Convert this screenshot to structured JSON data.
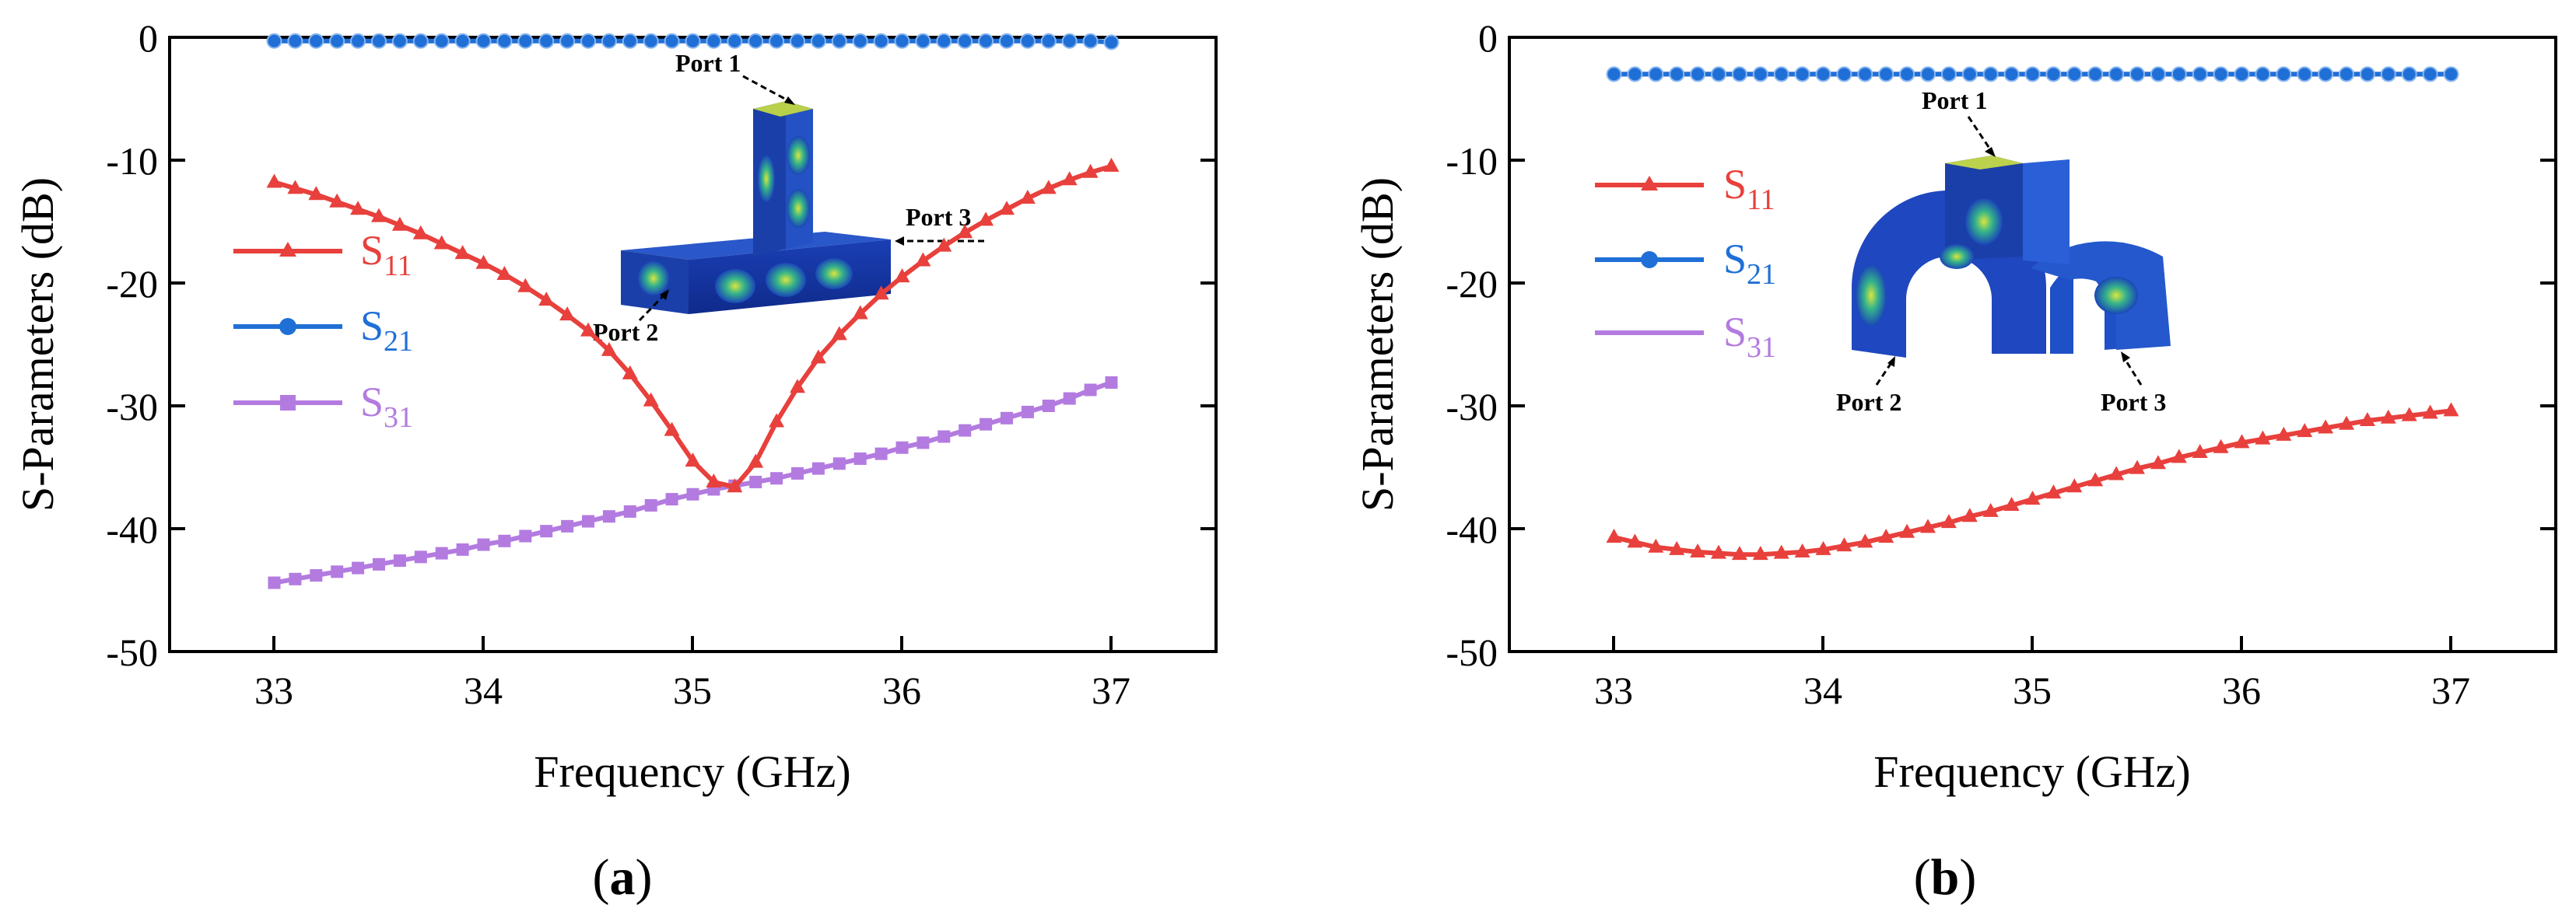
{
  "figure": {
    "panel_labels": [
      {
        "open": "(",
        "letter": "a",
        "close": ")"
      },
      {
        "open": "(",
        "letter": "b",
        "close": ")"
      }
    ]
  },
  "colors": {
    "s11": "#e8403c",
    "s21": "#1f6fd6",
    "s31": "#b37be0",
    "axis": "#000000"
  },
  "chart_data": [
    {
      "type": "line",
      "panel": "a",
      "xlabel": "Frequency (GHz)",
      "ylabel": "S-Parameters (dB)",
      "xlim": [
        32.5,
        37.5
      ],
      "ylim": [
        -50,
        0
      ],
      "xticks": [
        33,
        34,
        35,
        36,
        37
      ],
      "yticks": [
        0,
        -10,
        -20,
        -30,
        -40,
        -50
      ],
      "legend_position": "left-middle",
      "series": [
        {
          "name": "S11",
          "label_main": "S",
          "label_sub": "11",
          "marker": "triangle",
          "color": "#e8403c",
          "x": [
            33.0,
            33.1,
            33.2,
            33.3,
            33.4,
            33.5,
            33.6,
            33.7,
            33.8,
            33.9,
            34.0,
            34.1,
            34.2,
            34.3,
            34.4,
            34.5,
            34.6,
            34.7,
            34.8,
            34.9,
            35.0,
            35.1,
            35.2,
            35.3,
            35.4,
            35.5,
            35.6,
            35.7,
            35.8,
            35.9,
            36.0,
            36.1,
            36.2,
            36.3,
            36.4,
            36.5,
            36.6,
            36.7,
            36.8,
            36.9,
            37.0
          ],
          "y": [
            -11.8,
            -12.3,
            -12.8,
            -13.4,
            -14.0,
            -14.6,
            -15.3,
            -16.0,
            -16.8,
            -17.6,
            -18.4,
            -19.3,
            -20.3,
            -21.4,
            -22.6,
            -23.9,
            -25.5,
            -27.4,
            -29.6,
            -32.0,
            -34.5,
            -36.2,
            -36.6,
            -34.6,
            -31.3,
            -28.5,
            -26.1,
            -24.2,
            -22.5,
            -20.9,
            -19.5,
            -18.2,
            -17.0,
            -15.9,
            -14.9,
            -14.0,
            -13.1,
            -12.3,
            -11.6,
            -11.0,
            -10.5
          ]
        },
        {
          "name": "S21",
          "label_main": "S",
          "label_sub": "21",
          "marker": "circle",
          "color": "#1f6fd6",
          "x": [
            33.0,
            33.1,
            33.2,
            33.3,
            33.4,
            33.5,
            33.6,
            33.7,
            33.8,
            33.9,
            34.0,
            34.1,
            34.2,
            34.3,
            34.4,
            34.5,
            34.6,
            34.7,
            34.8,
            34.9,
            35.0,
            35.1,
            35.2,
            35.3,
            35.4,
            35.5,
            35.6,
            35.7,
            35.8,
            35.9,
            36.0,
            36.1,
            36.2,
            36.3,
            36.4,
            36.5,
            36.6,
            36.7,
            36.8,
            36.9,
            37.0
          ],
          "y": [
            -0.3,
            -0.3,
            -0.3,
            -0.3,
            -0.3,
            -0.3,
            -0.3,
            -0.3,
            -0.3,
            -0.3,
            -0.3,
            -0.3,
            -0.3,
            -0.3,
            -0.3,
            -0.3,
            -0.3,
            -0.3,
            -0.3,
            -0.3,
            -0.3,
            -0.3,
            -0.3,
            -0.3,
            -0.3,
            -0.3,
            -0.3,
            -0.3,
            -0.3,
            -0.3,
            -0.3,
            -0.3,
            -0.3,
            -0.3,
            -0.3,
            -0.3,
            -0.3,
            -0.3,
            -0.3,
            -0.3,
            -0.4
          ]
        },
        {
          "name": "S31",
          "label_main": "S",
          "label_sub": "31",
          "marker": "square",
          "color": "#b37be0",
          "x": [
            33.0,
            33.1,
            33.2,
            33.3,
            33.4,
            33.5,
            33.6,
            33.7,
            33.8,
            33.9,
            34.0,
            34.1,
            34.2,
            34.3,
            34.4,
            34.5,
            34.6,
            34.7,
            34.8,
            34.9,
            35.0,
            35.1,
            35.2,
            35.3,
            35.4,
            35.5,
            35.6,
            35.7,
            35.8,
            35.9,
            36.0,
            36.1,
            36.2,
            36.3,
            36.4,
            36.5,
            36.6,
            36.7,
            36.8,
            36.9,
            37.0
          ],
          "y": [
            -44.4,
            -44.1,
            -43.8,
            -43.5,
            -43.2,
            -42.9,
            -42.6,
            -42.3,
            -42.0,
            -41.7,
            -41.3,
            -41.0,
            -40.6,
            -40.2,
            -39.8,
            -39.4,
            -39.0,
            -38.6,
            -38.1,
            -37.6,
            -37.2,
            -36.8,
            -36.5,
            -36.2,
            -35.9,
            -35.5,
            -35.1,
            -34.7,
            -34.3,
            -33.9,
            -33.4,
            -33.0,
            -32.5,
            -32.0,
            -31.5,
            -31.0,
            -30.5,
            -30.0,
            -29.4,
            -28.7,
            -28.1
          ]
        }
      ],
      "inset": {
        "description_labels": [
          "Port 1",
          "Port 2",
          "Port 3"
        ]
      }
    },
    {
      "type": "line",
      "panel": "b",
      "xlabel": "Frequency (GHz)",
      "ylabel": "S-Parameters (dB)",
      "xlim": [
        32.5,
        37.5
      ],
      "ylim": [
        -50,
        0
      ],
      "xticks": [
        33,
        34,
        35,
        36,
        37
      ],
      "yticks": [
        0,
        -10,
        -20,
        -30,
        -40,
        -50
      ],
      "legend_position": "left-upper",
      "series": [
        {
          "name": "S11",
          "label_main": "S",
          "label_sub": "11",
          "marker": "triangle",
          "color": "#e8403c",
          "x": [
            33.0,
            33.1,
            33.2,
            33.3,
            33.4,
            33.5,
            33.6,
            33.7,
            33.8,
            33.9,
            34.0,
            34.1,
            34.2,
            34.3,
            34.4,
            34.5,
            34.6,
            34.7,
            34.8,
            34.9,
            35.0,
            35.1,
            35.2,
            35.3,
            35.4,
            35.5,
            35.6,
            35.7,
            35.8,
            35.9,
            36.0,
            36.1,
            36.2,
            36.3,
            36.4,
            36.5,
            36.6,
            36.7,
            36.8,
            36.9,
            37.0
          ],
          "y": [
            -40.7,
            -41.1,
            -41.5,
            -41.7,
            -41.9,
            -42.0,
            -42.1,
            -42.1,
            -42.0,
            -41.9,
            -41.7,
            -41.4,
            -41.1,
            -40.7,
            -40.3,
            -39.9,
            -39.5,
            -39.0,
            -38.6,
            -38.1,
            -37.6,
            -37.1,
            -36.6,
            -36.1,
            -35.6,
            -35.1,
            -34.7,
            -34.2,
            -33.8,
            -33.4,
            -33.0,
            -32.7,
            -32.4,
            -32.1,
            -31.8,
            -31.5,
            -31.2,
            -31.0,
            -30.8,
            -30.6,
            -30.4
          ]
        },
        {
          "name": "S21",
          "label_main": "S",
          "label_sub": "21",
          "marker": "circle",
          "color": "#1f6fd6",
          "x": [
            33.0,
            33.1,
            33.2,
            33.3,
            33.4,
            33.5,
            33.6,
            33.7,
            33.8,
            33.9,
            34.0,
            34.1,
            34.2,
            34.3,
            34.4,
            34.5,
            34.6,
            34.7,
            34.8,
            34.9,
            35.0,
            35.1,
            35.2,
            35.3,
            35.4,
            35.5,
            35.6,
            35.7,
            35.8,
            35.9,
            36.0,
            36.1,
            36.2,
            36.3,
            36.4,
            36.5,
            36.6,
            36.7,
            36.8,
            36.9,
            37.0
          ],
          "y": [
            -3.0,
            -3.0,
            -3.0,
            -3.0,
            -3.0,
            -3.0,
            -3.0,
            -3.0,
            -3.0,
            -3.0,
            -3.0,
            -3.0,
            -3.0,
            -3.0,
            -3.0,
            -3.0,
            -3.0,
            -3.0,
            -3.0,
            -3.0,
            -3.0,
            -3.0,
            -3.0,
            -3.0,
            -3.0,
            -3.0,
            -3.0,
            -3.0,
            -3.0,
            -3.0,
            -3.0,
            -3.0,
            -3.0,
            -3.0,
            -3.0,
            -3.0,
            -3.0,
            -3.0,
            -3.0,
            -3.0,
            -3.0
          ]
        },
        {
          "name": "S31",
          "label_main": "S",
          "label_sub": "31",
          "marker": "none",
          "color": "#b37be0",
          "x": [
            33.0,
            33.1,
            33.2,
            33.3,
            33.4,
            33.5,
            33.6,
            33.7,
            33.8,
            33.9,
            34.0,
            34.1,
            34.2,
            34.3,
            34.4,
            34.5,
            34.6,
            34.7,
            34.8,
            34.9,
            35.0,
            35.1,
            35.2,
            35.3,
            35.4,
            35.5,
            35.6,
            35.7,
            35.8,
            35.9,
            36.0,
            36.1,
            36.2,
            36.3,
            36.4,
            36.5,
            36.6,
            36.7,
            36.8,
            36.9,
            37.0
          ],
          "y": [
            -3.0,
            -3.0,
            -3.0,
            -3.0,
            -3.0,
            -3.0,
            -3.0,
            -3.0,
            -3.0,
            -3.0,
            -3.0,
            -3.0,
            -3.0,
            -3.0,
            -3.0,
            -3.0,
            -3.0,
            -3.0,
            -3.0,
            -3.0,
            -3.0,
            -3.0,
            -3.0,
            -3.0,
            -3.0,
            -3.0,
            -3.0,
            -3.0,
            -3.0,
            -3.0,
            -3.0,
            -3.0,
            -3.0,
            -3.0,
            -3.0,
            -3.0,
            -3.0,
            -3.0,
            -3.0,
            -3.0,
            -3.0
          ]
        }
      ],
      "inset": {
        "description_labels": [
          "Port 1",
          "Port 2",
          "Port 3"
        ]
      }
    }
  ]
}
